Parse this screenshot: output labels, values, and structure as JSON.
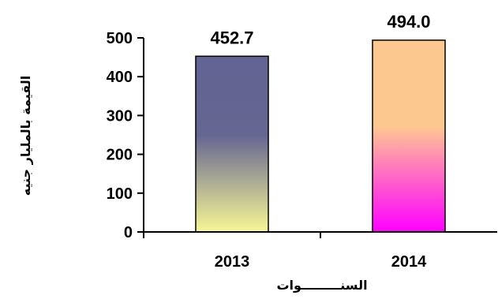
{
  "chart_data": {
    "type": "bar",
    "categories": [
      "2013",
      "2014"
    ],
    "values": [
      452.7,
      494.0
    ],
    "data_labels": [
      "452.7",
      "494.0"
    ],
    "title": "",
    "xlabel": "السنـــــــــوات",
    "ylabel": "القيمة بالمليار جنيه",
    "ylim": [
      0,
      500
    ],
    "yticks": [
      0,
      100,
      200,
      300,
      400,
      500
    ],
    "grid": false,
    "legend": "none",
    "bar_gradients": [
      {
        "top": "#636394",
        "mid": "#666692",
        "bottom": "#f7f795"
      },
      {
        "top": "#fdc890",
        "mid": "#fdc890",
        "bottom": "#ff00ff"
      }
    ]
  }
}
